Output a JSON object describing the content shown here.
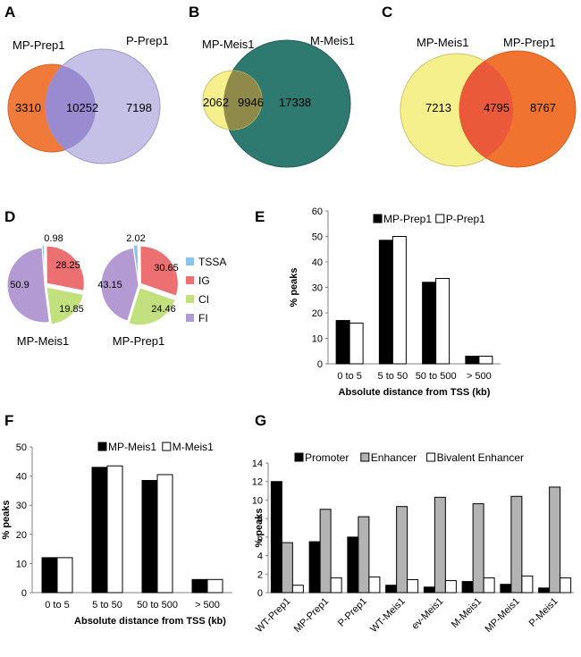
{
  "colors": {
    "orange": "#f07a3a",
    "lavender": "#c4c0e6",
    "purple_overlap": "#9a8bd0",
    "yellow": "#f5f08c",
    "teal": "#2e7a70",
    "olive_overlap": "#8f8a4a",
    "orange2": "#f07430",
    "red_overlap": "#ea5a3a",
    "black": "#000000",
    "gray": "#b3b3b3",
    "white": "#ffffff",
    "tssa": "#8ec3ea",
    "ig": "#ec7072",
    "ci": "#c3e07e",
    "fi": "#b39ad3"
  },
  "venns": [
    {
      "panel": "A",
      "left_name": "MP-Prep1",
      "right_name": "P-Prep1",
      "left_only": "3310",
      "both": "10252",
      "right_only": "7198"
    },
    {
      "panel": "B",
      "left_name": "MP-Meis1",
      "right_name": "M-Meis1",
      "left_only": "2062",
      "both": "9946",
      "right_only": "17338"
    },
    {
      "panel": "C",
      "left_name": "MP-Meis1",
      "right_name": "MP-Prep1",
      "left_only": "7213",
      "both": "4795",
      "right_only": "8767"
    }
  ],
  "chart_data": [
    {
      "panel": "D",
      "type": "pie",
      "legend": [
        "TSSA",
        "IG",
        "CI",
        "FI"
      ],
      "pies": [
        {
          "name": "MP-Meis1",
          "slices": [
            {
              "label": "TSSA",
              "value": 0.98,
              "text": "0.98"
            },
            {
              "label": "IG",
              "value": 28.25,
              "text": "28.25"
            },
            {
              "label": "CI",
              "value": 19.85,
              "text": "19.85"
            },
            {
              "label": "FI",
              "value": 50.9,
              "text": "50.9"
            }
          ]
        },
        {
          "name": "MP-Prep1",
          "slices": [
            {
              "label": "TSSA",
              "value": 2.02,
              "text": "2.02"
            },
            {
              "label": "IG",
              "value": 30.65,
              "text": "30.65"
            },
            {
              "label": "CI",
              "value": 24.46,
              "text": "24.46"
            },
            {
              "label": "FI",
              "value": 43.15,
              "text": "43.15"
            }
          ]
        }
      ]
    },
    {
      "panel": "E",
      "type": "bar",
      "categories": [
        "0 to 5",
        "5 to 50",
        "50 to 500",
        "> 500"
      ],
      "series": [
        {
          "name": "MP-Prep1",
          "values": [
            17,
            48.5,
            32,
            3
          ]
        },
        {
          "name": "P-Prep1",
          "values": [
            16,
            50,
            33.5,
            3
          ]
        }
      ],
      "ylabel": "% peaks",
      "xlabel": "Absolute distance from TSS (kb)",
      "ylim": [
        0,
        60
      ],
      "yticks": [
        0,
        10,
        20,
        30,
        40,
        50,
        60
      ]
    },
    {
      "panel": "F",
      "type": "bar",
      "categories": [
        "0 to 5",
        "5 to 50",
        "50 to 500",
        "> 500"
      ],
      "series": [
        {
          "name": "MP-Meis1",
          "values": [
            12,
            43,
            38.5,
            4.5
          ]
        },
        {
          "name": "M-Meis1",
          "values": [
            12,
            43.5,
            40.5,
            4.5
          ]
        }
      ],
      "ylabel": "% peaks",
      "xlabel": "Absolute distance from TSS (kb)",
      "ylim": [
        0,
        50
      ],
      "yticks": [
        0,
        10,
        20,
        30,
        40,
        50
      ]
    },
    {
      "panel": "G",
      "type": "bar",
      "categories": [
        "WT-Prep1",
        "MP-Prep1",
        "P-Prep1",
        "WT-Meis1",
        "ev-Meis1",
        "M-Meis1",
        "MP-Meis1",
        "P-Meis1"
      ],
      "series": [
        {
          "name": "Promoter",
          "values": [
            12,
            5.5,
            6,
            0.8,
            0.6,
            1.2,
            0.9,
            0.5
          ]
        },
        {
          "name": "Enhancer",
          "values": [
            5.4,
            9,
            8.2,
            9.3,
            10.3,
            9.6,
            10.4,
            11.4
          ]
        },
        {
          "name": "Bivalent Enhancer",
          "values": [
            0.8,
            1.6,
            1.7,
            1.4,
            1.3,
            1.6,
            1.8,
            1.6
          ]
        }
      ],
      "ylabel": "% peaks",
      "ylim": [
        0,
        14
      ],
      "yticks": [
        0,
        2,
        4,
        6,
        8,
        10,
        12,
        14
      ]
    }
  ]
}
